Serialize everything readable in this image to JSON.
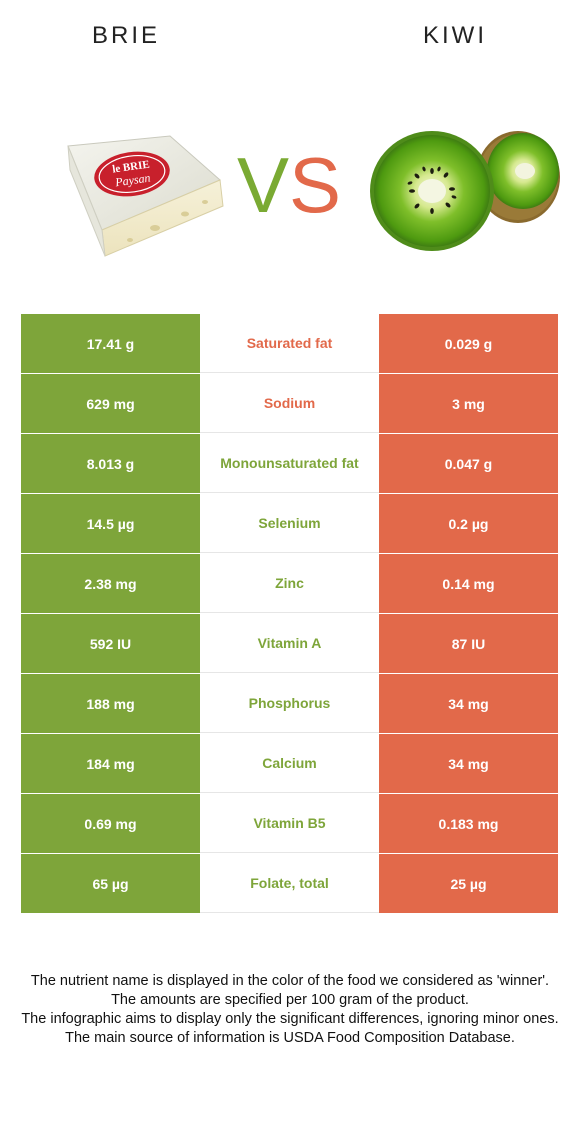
{
  "header": {
    "left_title": "BRIE",
    "right_title": "KIWI",
    "vs_v": "V",
    "vs_s": "S"
  },
  "images": {
    "left": {
      "name": "brie-cheese-image",
      "label_line1": "le BRIE",
      "label_line2": "Paysan"
    },
    "right": {
      "name": "kiwi-fruit-image"
    }
  },
  "colors": {
    "brie": "#7ea53a",
    "kiwi": "#e2694a"
  },
  "rows": [
    {
      "left": "17.41 g",
      "nutrient": "Saturated fat",
      "right": "0.029 g",
      "winner": "kiwi"
    },
    {
      "left": "629 mg",
      "nutrient": "Sodium",
      "right": "3 mg",
      "winner": "kiwi"
    },
    {
      "left": "8.013 g",
      "nutrient": "Monounsaturated fat",
      "right": "0.047 g",
      "winner": "brie"
    },
    {
      "left": "14.5 µg",
      "nutrient": "Selenium",
      "right": "0.2 µg",
      "winner": "brie"
    },
    {
      "left": "2.38 mg",
      "nutrient": "Zinc",
      "right": "0.14 mg",
      "winner": "brie"
    },
    {
      "left": "592 IU",
      "nutrient": "Vitamin A",
      "right": "87 IU",
      "winner": "brie"
    },
    {
      "left": "188 mg",
      "nutrient": "Phosphorus",
      "right": "34 mg",
      "winner": "brie"
    },
    {
      "left": "184 mg",
      "nutrient": "Calcium",
      "right": "34 mg",
      "winner": "brie"
    },
    {
      "left": "0.69 mg",
      "nutrient": "Vitamin B5",
      "right": "0.183 mg",
      "winner": "brie"
    },
    {
      "left": "65 µg",
      "nutrient": "Folate, total",
      "right": "25 µg",
      "winner": "brie"
    }
  ],
  "notes": [
    "The nutrient name is displayed in the color of the food we considered as 'winner'.",
    "The amounts are specified per 100 gram of the product.",
    "The infographic aims to display only the significant differences, ignoring minor ones.",
    "The main source of information is USDA Food Composition Database."
  ]
}
